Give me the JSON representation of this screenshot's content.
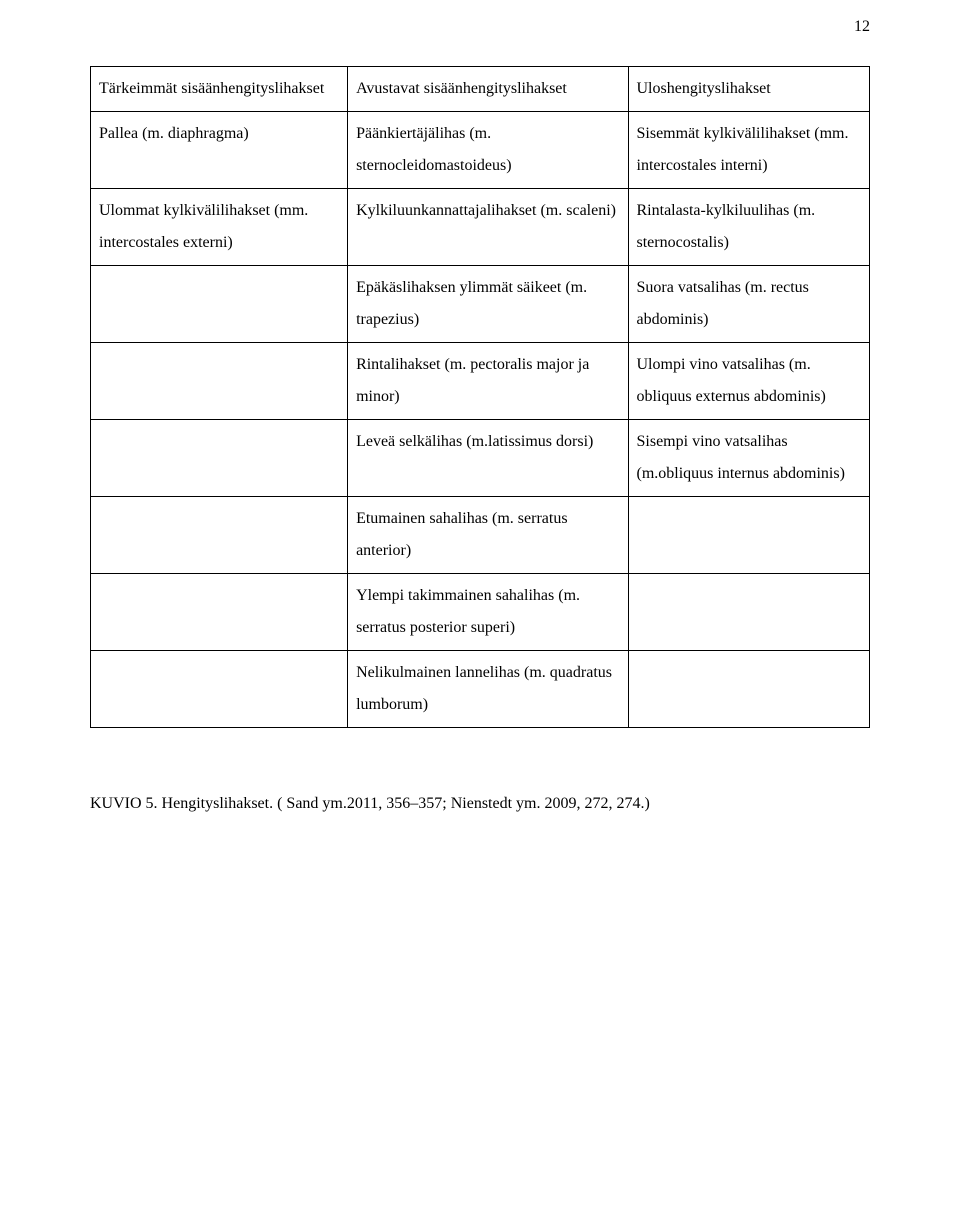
{
  "page_number": "12",
  "table": {
    "rows": [
      {
        "c1": "Tärkeimmät sisäänhengityslihakset",
        "c2": "Avustavat sisäänhengityslihakset",
        "c3": "Uloshengityslihakset"
      },
      {
        "c1": "Pallea (m. diaphragma)",
        "c2": "Päänkiertäjälihas (m. sternocleidomastoideus)",
        "c3": "Sisemmät kylkivälilihakset (mm. intercostales interni)"
      },
      {
        "c1": "Ulommat kylkivälilihakset (mm. intercostales externi)",
        "c2": "Kylkiluunkannattajalihakset (m. scaleni)",
        "c3": "Rintalasta-kylkiluulihas (m. sternocostalis)"
      },
      {
        "c1": "",
        "c2": "Epäkäslihaksen ylimmät säikeet (m. trapezius)",
        "c3": "Suora vatsalihas (m. rectus abdominis)"
      },
      {
        "c1": "",
        "c2": "Rintalihakset (m. pectoralis major ja minor)",
        "c3": "Ulompi vino vatsalihas (m. obliquus externus abdominis)"
      },
      {
        "c1": "",
        "c2": "Leveä selkälihas (m.latissimus dorsi)",
        "c3": "Sisempi vino vatsalihas (m.obliquus internus abdominis)"
      },
      {
        "c1": "",
        "c2": "Etumainen sahalihas (m. serratus anterior)",
        "c3": ""
      },
      {
        "c1": "",
        "c2": "Ylempi takimmainen sahalihas (m. serratus posterior superi)",
        "c3": ""
      },
      {
        "c1": "",
        "c2": "Nelikulmainen lannelihas (m. quadratus lumborum)",
        "c3": ""
      }
    ]
  },
  "caption": "KUVIO 5. Hengityslihakset. ( Sand ym.2011, 356–357; Nienstedt ym. 2009, 272, 274.)"
}
